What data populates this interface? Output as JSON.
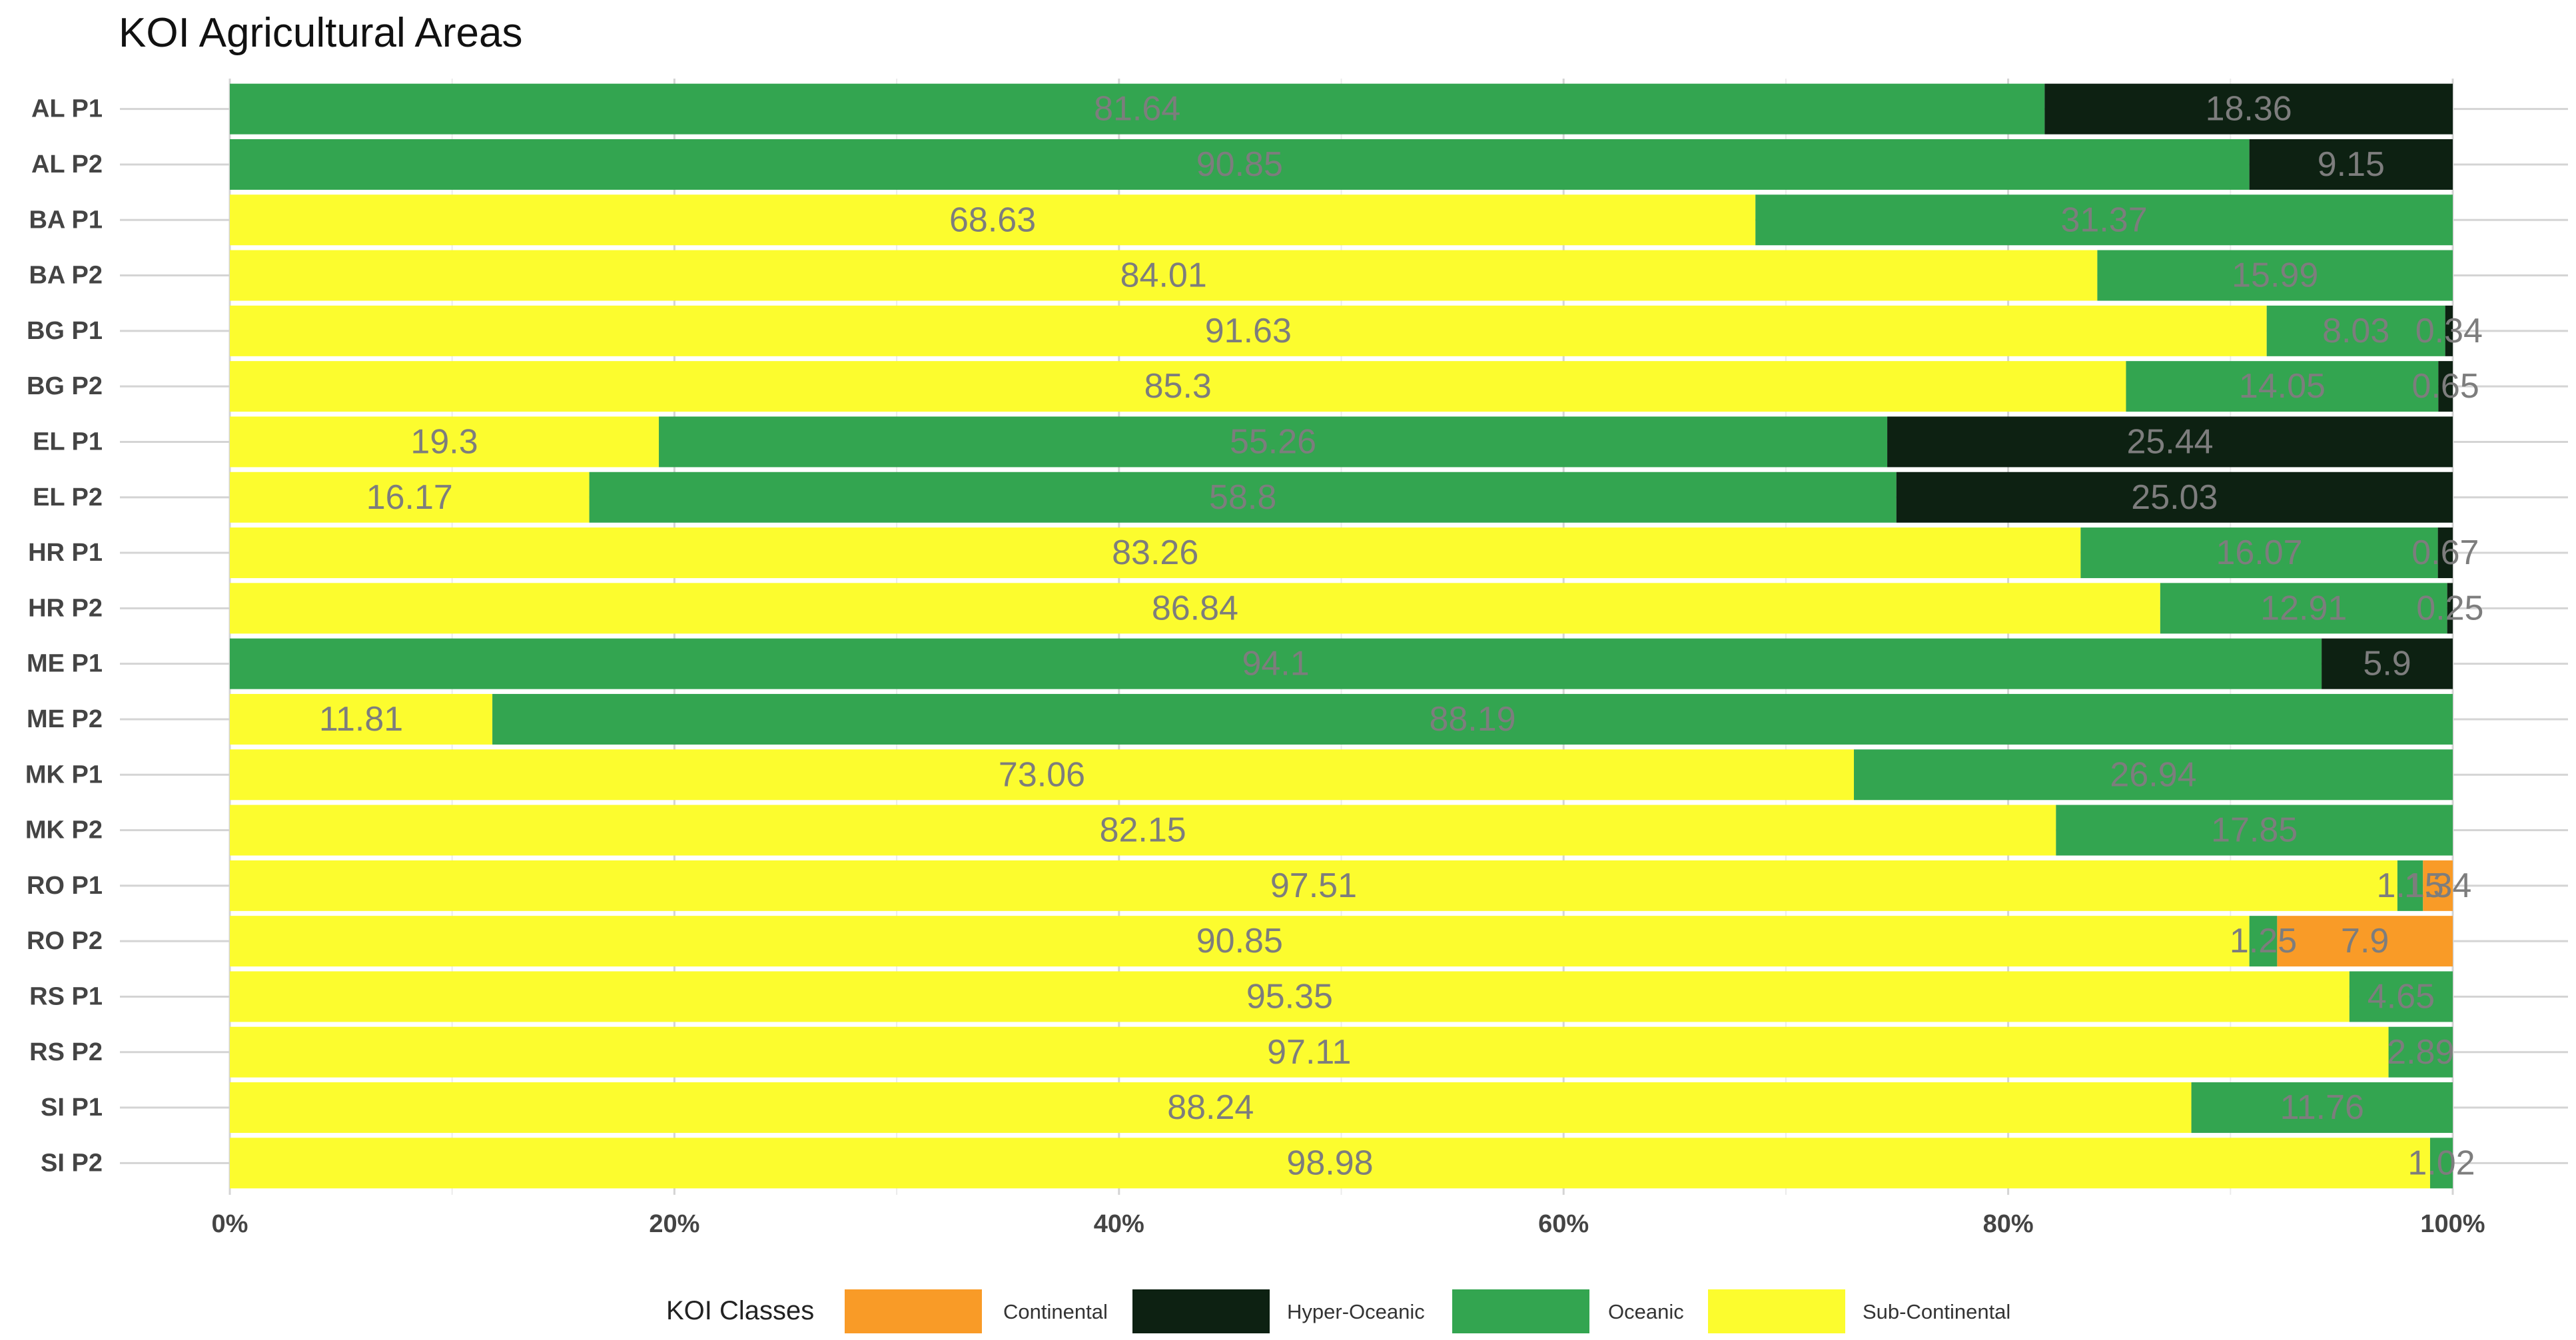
{
  "chart_data": {
    "type": "bar",
    "orientation": "horizontal",
    "stacked": true,
    "normalized": true,
    "title": "KOI Agricultural Areas",
    "xlabel": "",
    "ylabel": "",
    "xlim": [
      0,
      100
    ],
    "x_ticks": [
      "0%",
      "20%",
      "40%",
      "60%",
      "80%",
      "100%"
    ],
    "x_tick_values": [
      0,
      20,
      40,
      60,
      80,
      100
    ],
    "grid": true,
    "legend": {
      "title": "KOI Classes",
      "position": "bottom",
      "entries": [
        "Continental",
        "Hyper-Oceanic",
        "Oceanic",
        "Sub-Continental"
      ]
    },
    "colors": {
      "Continental": "#F99B27",
      "Hyper-Oceanic": "#0D2112",
      "Oceanic": "#33A550",
      "Sub-Continental": "#FCFC2E"
    },
    "categories": [
      "AL P1",
      "AL P2",
      "BA P1",
      "BA P2",
      "BG P1",
      "BG P2",
      "EL P1",
      "EL P2",
      "HR P1",
      "HR P2",
      "ME P1",
      "ME P2",
      "MK P1",
      "MK P2",
      "RO P1",
      "RO P2",
      "RS P1",
      "RS P2",
      "SI P1",
      "SI P2"
    ],
    "series": [
      {
        "name": "Sub-Continental",
        "values": [
          0,
          0,
          68.63,
          84.01,
          91.63,
          85.3,
          19.3,
          16.17,
          83.26,
          86.84,
          0,
          11.81,
          73.06,
          82.15,
          97.51,
          90.85,
          95.35,
          97.11,
          88.24,
          98.98
        ],
        "labels": [
          "",
          "",
          "68.63",
          "84.01",
          "91.63",
          "85.3",
          "19.3",
          "16.17",
          "83.26",
          "86.84",
          "",
          "11.81",
          "73.06",
          "82.15",
          "97.51",
          "90.85",
          "95.35",
          "97.11",
          "88.24",
          "98.98"
        ]
      },
      {
        "name": "Oceanic",
        "values": [
          81.64,
          90.85,
          31.37,
          15.99,
          8.03,
          14.05,
          55.26,
          58.8,
          16.07,
          12.91,
          94.1,
          88.19,
          26.94,
          17.85,
          1.15,
          1.25,
          4.65,
          2.89,
          11.76,
          1.02
        ],
        "labels": [
          "81.64",
          "90.85",
          "31.37",
          "15.99",
          "8.03",
          "14.05",
          "55.26",
          "58.8",
          "16.07",
          "12.91",
          "94.1",
          "88.19",
          "26.94",
          "17.85",
          "1.15",
          "1.25",
          "4.65",
          "2.89",
          "11.76",
          "1.02"
        ]
      },
      {
        "name": "Hyper-Oceanic",
        "values": [
          18.36,
          9.15,
          0,
          0,
          0.34,
          0.65,
          25.44,
          25.03,
          0.67,
          0.25,
          5.9,
          0,
          0,
          0,
          0,
          0,
          0,
          0,
          0,
          0
        ],
        "labels": [
          "18.36",
          "9.15",
          "",
          "",
          "0.34",
          "0.65",
          "25.44",
          "25.03",
          "0.67",
          "0.25",
          "5.9",
          "",
          "",
          "",
          "",
          "",
          "",
          "",
          "",
          ""
        ]
      },
      {
        "name": "Continental",
        "values": [
          0,
          0,
          0,
          0,
          0,
          0,
          0,
          0,
          0,
          0,
          0,
          0,
          0,
          0,
          1.34,
          7.9,
          0,
          0,
          0,
          0
        ],
        "labels": [
          "",
          "",
          "",
          "",
          "",
          "",
          "",
          "",
          "",
          "",
          "",
          "",
          "",
          "",
          "1.34",
          "7.9",
          "",
          "",
          "",
          ""
        ]
      }
    ]
  }
}
